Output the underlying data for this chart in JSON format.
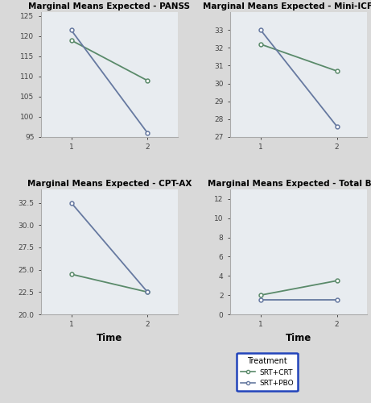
{
  "plots": [
    {
      "title": "Marginal Means Expected - PANSS",
      "series": [
        {
          "label": "SRT+CRT",
          "color": "#5a8a6a",
          "x": [
            1,
            2
          ],
          "y": [
            119.0,
            109.0
          ]
        },
        {
          "label": "SRT+PBO",
          "color": "#6679a0",
          "x": [
            1,
            2
          ],
          "y": [
            121.5,
            96.0
          ]
        }
      ],
      "ylim": [
        95,
        126
      ],
      "yticks": [
        95,
        100,
        105,
        110,
        115,
        120,
        125
      ],
      "ytick_labels": [
        "95",
        "100",
        "105",
        "110",
        "115",
        "120",
        "125"
      ],
      "show_xlabel": false
    },
    {
      "title": "Marginal Means Expected - Mini-ICF-APP",
      "series": [
        {
          "label": "SRT+CRT",
          "color": "#5a8a6a",
          "x": [
            1,
            2
          ],
          "y": [
            32.2,
            30.7
          ]
        },
        {
          "label": "SRT+PBO",
          "color": "#6679a0",
          "x": [
            1,
            2
          ],
          "y": [
            33.0,
            27.6
          ]
        }
      ],
      "ylim": [
        27,
        34
      ],
      "yticks": [
        27,
        28,
        29,
        30,
        31,
        32,
        33
      ],
      "ytick_labels": [
        "27",
        "28",
        "29",
        "30",
        "31",
        "32",
        "33"
      ],
      "show_xlabel": false
    },
    {
      "title": "Marginal Means Expected - CPT-AX",
      "series": [
        {
          "label": "SRT+CRT",
          "color": "#5a8a6a",
          "x": [
            1,
            2
          ],
          "y": [
            24.5,
            22.5
          ]
        },
        {
          "label": "SRT+PBO",
          "color": "#6679a0",
          "x": [
            1,
            2
          ],
          "y": [
            32.5,
            22.5
          ]
        }
      ],
      "ylim": [
        20,
        34
      ],
      "yticks": [
        20.0,
        22.5,
        25.0,
        27.5,
        30.0,
        32.5
      ],
      "ytick_labels": [
        "20.0",
        "22.5",
        "25.0",
        "27.5",
        "30.0",
        "32.5"
      ],
      "show_xlabel": true
    },
    {
      "title": "Marginal Means Expected - Total BACS",
      "series": [
        {
          "label": "SRT+CRT",
          "color": "#5a8a6a",
          "x": [
            1,
            2
          ],
          "y": [
            2.0,
            3.5
          ]
        },
        {
          "label": "SRT+PBO",
          "color": "#6679a0",
          "x": [
            1,
            2
          ],
          "y": [
            1.5,
            1.5
          ]
        }
      ],
      "ylim": [
        0,
        13
      ],
      "yticks": [
        0,
        2,
        4,
        6,
        8,
        10,
        12
      ],
      "ytick_labels": [
        "0",
        "2",
        "4",
        "6",
        "8",
        "10",
        "12"
      ],
      "show_xlabel": true
    }
  ],
  "legend": {
    "labels": [
      "SRT+CRT",
      "SRT+PBO"
    ],
    "colors": [
      "#5a8a6a",
      "#6679a0"
    ]
  },
  "bg_color": "#d9d9d9",
  "plot_bg_color": "#e8ecf0",
  "title_fontsize": 7.5,
  "tick_fontsize": 6.5,
  "xlabel_fontsize": 8.5
}
